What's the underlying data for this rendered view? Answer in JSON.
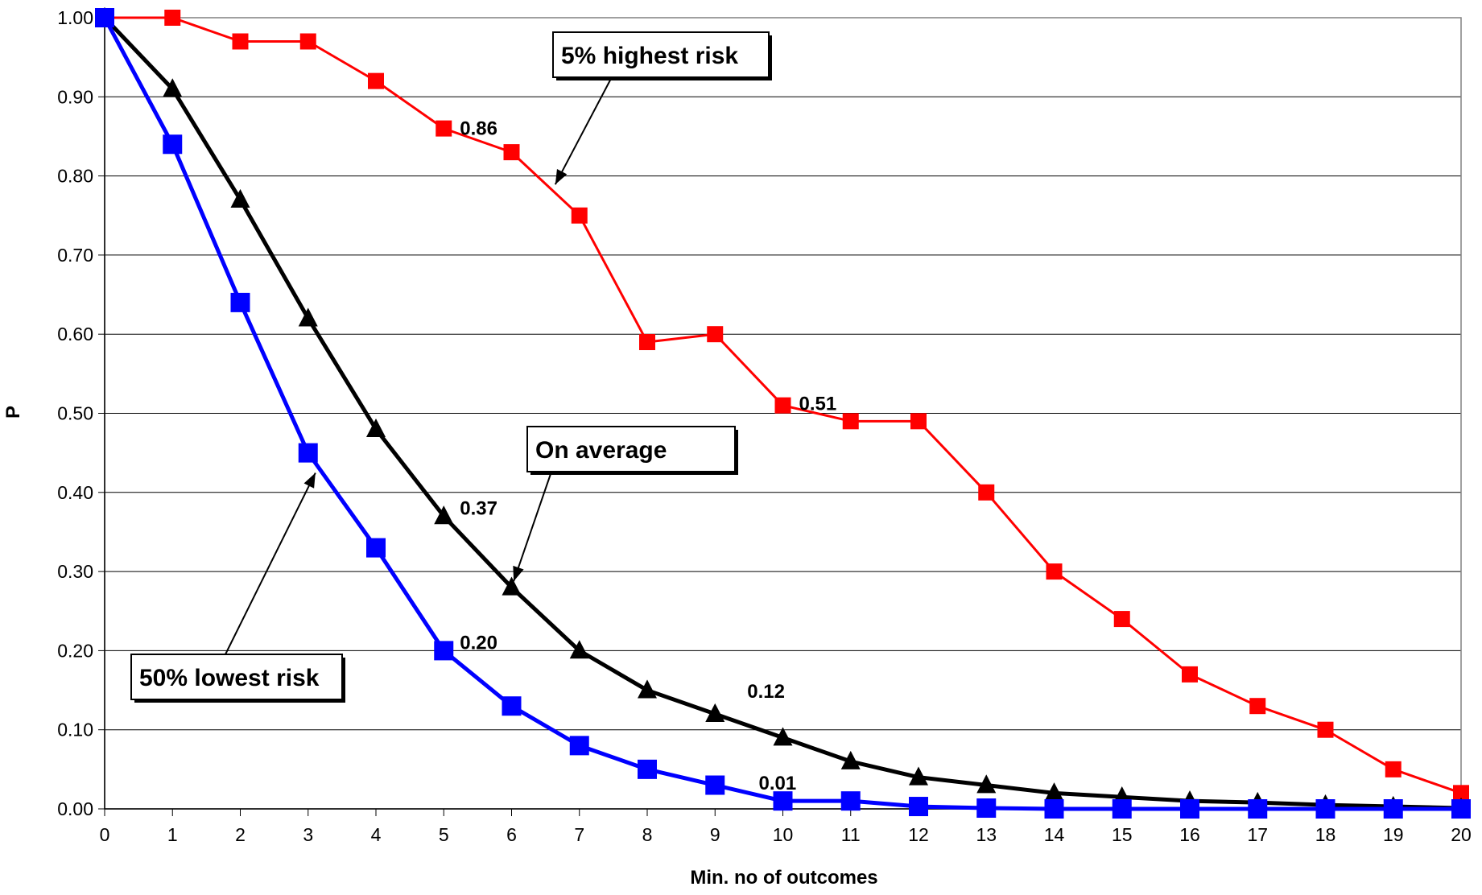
{
  "chart_data": {
    "type": "line",
    "xlabel": "Min. no of outcomes",
    "ylabel": "P",
    "xlim": [
      0,
      20
    ],
    "ylim": [
      0,
      1
    ],
    "x_ticks": [
      "0",
      "1",
      "2",
      "3",
      "4",
      "5",
      "6",
      "7",
      "8",
      "9",
      "10",
      "11",
      "12",
      "13",
      "14",
      "15",
      "16",
      "17",
      "18",
      "19",
      "20"
    ],
    "y_ticks": [
      "0.00",
      "0.10",
      "0.20",
      "0.30",
      "0.40",
      "0.50",
      "0.60",
      "0.70",
      "0.80",
      "0.90",
      "1.00"
    ],
    "grid": "horizontal",
    "x": [
      0,
      1,
      2,
      3,
      4,
      5,
      6,
      7,
      8,
      9,
      10,
      11,
      12,
      13,
      14,
      15,
      16,
      17,
      18,
      19,
      20
    ],
    "series": [
      {
        "color": "#ff0000",
        "marker": "square",
        "values": [
          1.0,
          1.0,
          0.97,
          0.97,
          0.92,
          0.86,
          0.83,
          0.75,
          0.59,
          0.6,
          0.51,
          0.49,
          0.49,
          0.4,
          0.3,
          0.24,
          0.17,
          0.13,
          0.1,
          0.05,
          0.02
        ]
      },
      {
        "color": "#000000",
        "marker": "triangle",
        "values": [
          1.0,
          0.91,
          0.77,
          0.62,
          0.48,
          0.37,
          0.28,
          0.2,
          0.15,
          0.12,
          0.09,
          0.06,
          0.04,
          0.03,
          0.02,
          0.015,
          0.01,
          0.008,
          0.005,
          0.003,
          0.001
        ]
      },
      {
        "color": "#0000ff",
        "marker": "square",
        "values": [
          1.0,
          0.84,
          0.64,
          0.45,
          0.33,
          0.2,
          0.13,
          0.08,
          0.05,
          0.03,
          0.01,
          0.01,
          0.003,
          0.001,
          0,
          0,
          0,
          0,
          0,
          0,
          0
        ]
      }
    ],
    "data_labels": [
      {
        "text": "0.86",
        "series": 0,
        "x": 5
      },
      {
        "text": "0.51",
        "series": 0,
        "x": 10
      },
      {
        "text": "0.37",
        "series": 1,
        "x": 5
      },
      {
        "text": "0.12",
        "series": 1,
        "x": 9
      },
      {
        "text": "0.20",
        "series": 2,
        "x": 5
      },
      {
        "text": "0.01",
        "series": 2,
        "x": 10
      }
    ],
    "annotations": [
      {
        "text": "5% highest risk",
        "series": 0,
        "target_x": 6.6
      },
      {
        "text": "On average",
        "series": 1,
        "target_x": 6
      },
      {
        "text": "50% lowest risk",
        "series": 2,
        "target_x": 3.15
      }
    ]
  }
}
